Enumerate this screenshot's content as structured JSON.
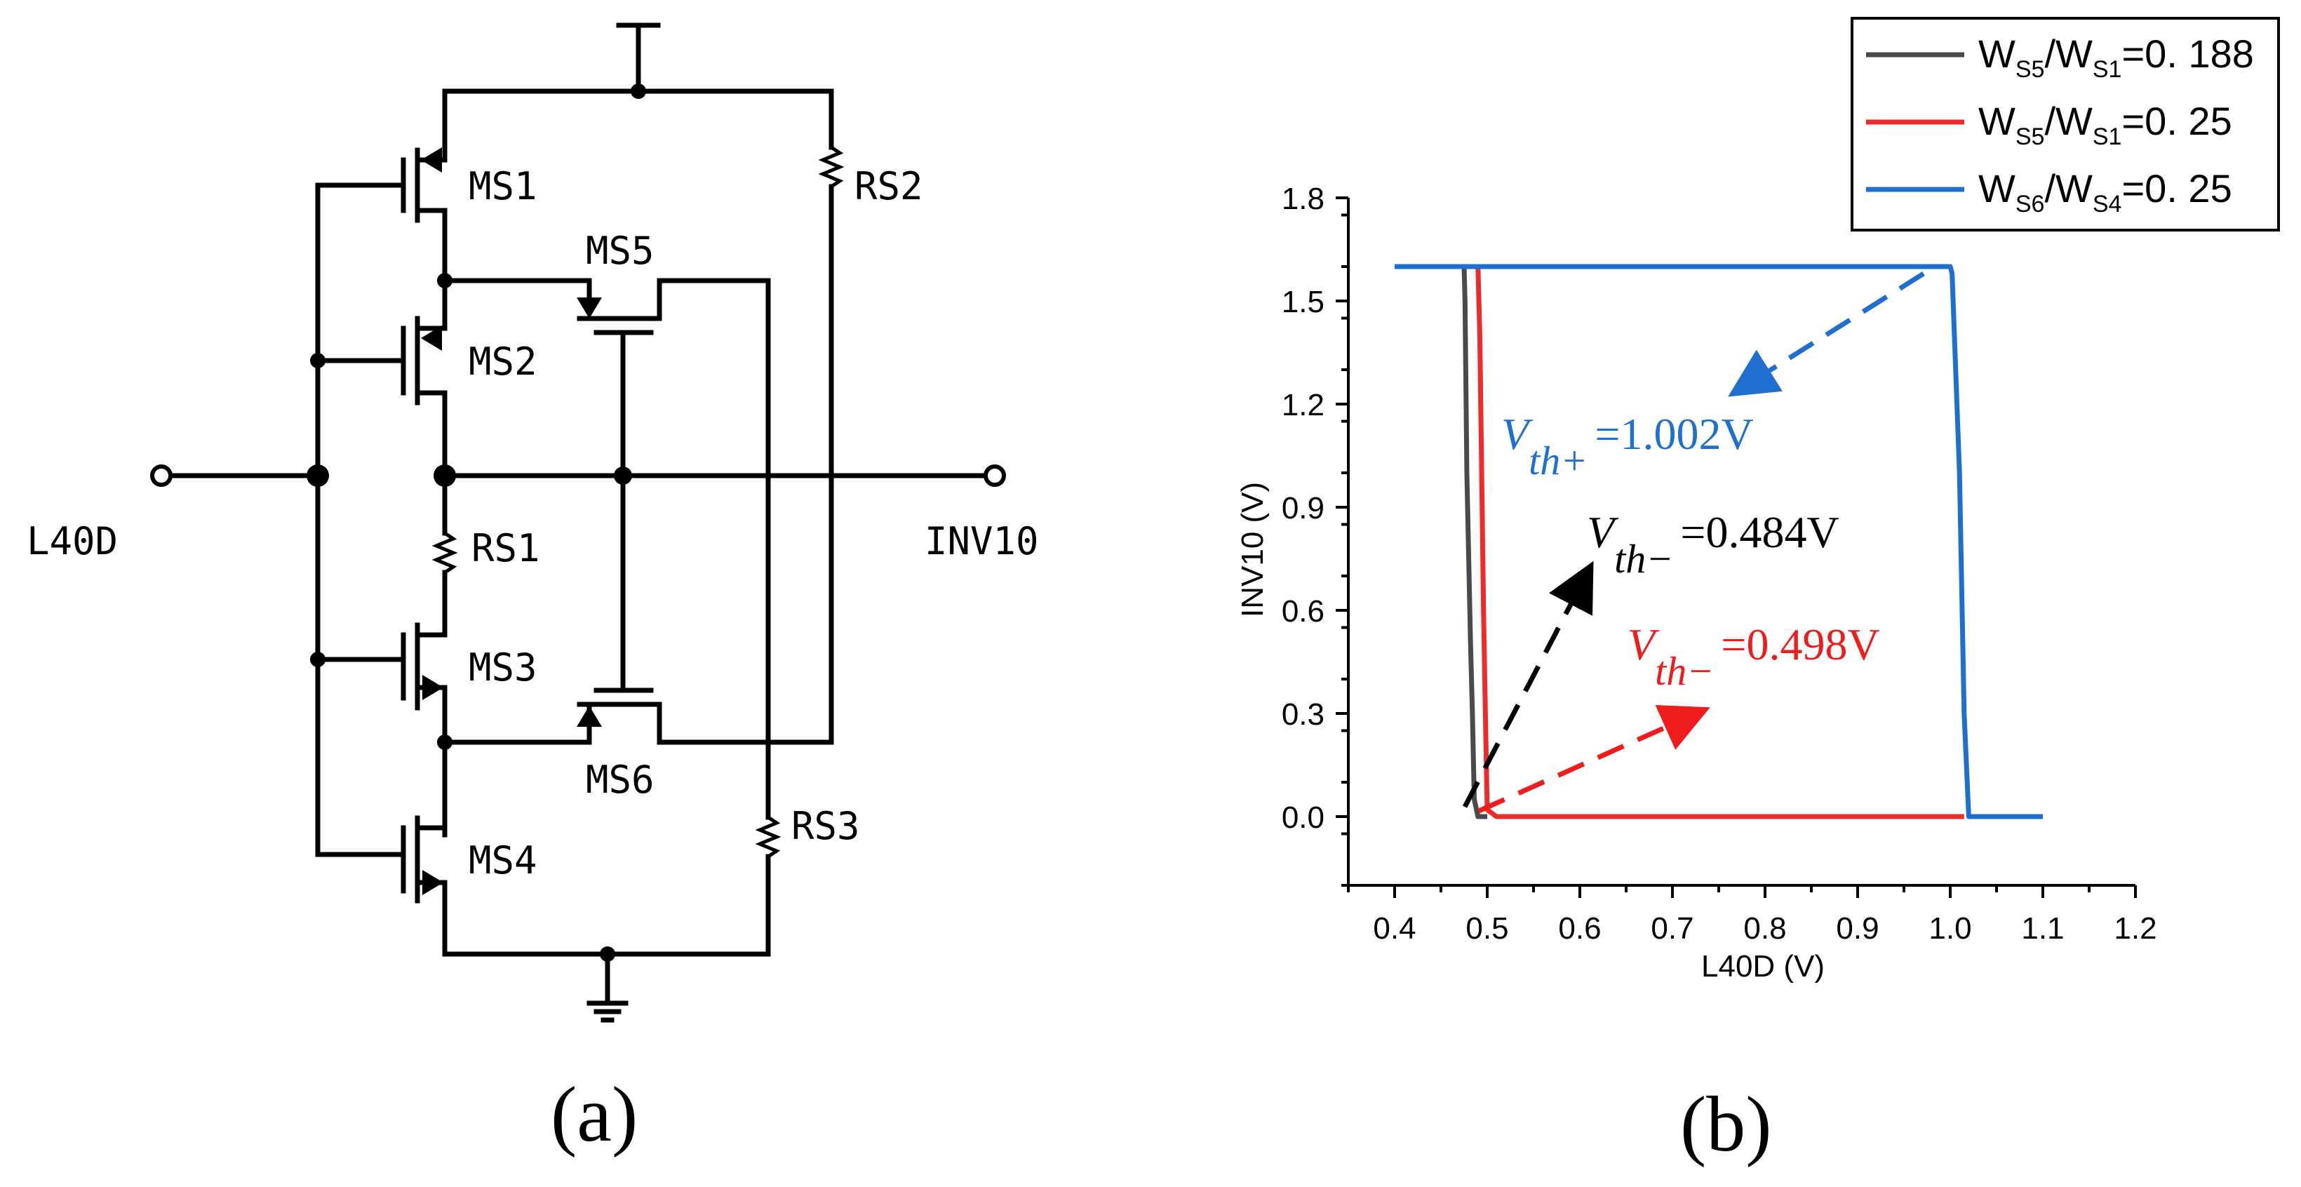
{
  "circuit": {
    "transistors": {
      "ms1": "MS1",
      "ms2": "MS2",
      "ms3": "MS3",
      "ms4": "MS4",
      "ms5": "MS5",
      "ms6": "MS6"
    },
    "resistors": {
      "rs1": "RS1",
      "rs2": "RS2",
      "rs3": "RS3"
    },
    "input_label": "L40D",
    "output_label": "INV10",
    "caption": "(a)"
  },
  "chart_caption": "(b)",
  "chart_data": {
    "type": "line",
    "title": "",
    "xlabel": "L40D (V)",
    "ylabel": "INV10 (V)",
    "xlim": [
      0.35,
      1.2
    ],
    "ylim": [
      -0.2,
      1.8
    ],
    "xticks": [
      0.4,
      0.5,
      0.6,
      0.7,
      0.8,
      0.9,
      1.0,
      1.1,
      1.2
    ],
    "xtick_labels": [
      "0.4",
      "0.5",
      "0.6",
      "0.7",
      "0.8",
      "0.9",
      "1.0",
      "1.1",
      "1.2"
    ],
    "yticks": [
      0.0,
      0.3,
      0.6,
      0.9,
      1.2,
      1.5,
      1.8
    ],
    "ytick_labels": [
      "0.0",
      "0.3",
      "0.6",
      "0.9",
      "1.2",
      "1.5",
      "1.8"
    ],
    "legend": {
      "position": "top-right",
      "entries": [
        {
          "w": "W",
          "a": "S5",
          "sep": "/W",
          "b": "S1",
          "value": "=0. 188",
          "color": "#4a4a4a"
        },
        {
          "w": "W",
          "a": "S5",
          "sep": "/W",
          "b": "S1",
          "value": "=0. 25",
          "color": "#ee2b2b"
        },
        {
          "w": "W",
          "a": "S6",
          "sep": "/W",
          "b": "S4",
          "value": "=0. 25",
          "color": "#1f6fd1"
        }
      ]
    },
    "series": [
      {
        "name": "WS5/WS1=0.188",
        "color": "#4a4a4a",
        "x": [
          0.475,
          0.476,
          0.478,
          0.482,
          0.484,
          0.486,
          0.49,
          0.5
        ],
        "y": [
          1.6,
          1.5,
          1.0,
          0.5,
          0.3,
          0.05,
          0.0,
          0.0
        ]
      },
      {
        "name": "WS5/WS1=0.25",
        "color": "#ee2b2b",
        "x": [
          0.49,
          0.492,
          0.494,
          0.496,
          0.498,
          0.5,
          0.51,
          1.0,
          1.015
        ],
        "y": [
          1.6,
          1.4,
          1.0,
          0.6,
          0.3,
          0.02,
          0.0,
          0.0,
          0.0
        ]
      },
      {
        "name": "WS6/WS4=0.25",
        "color": "#1f6fd1",
        "x": [
          0.4,
          0.95,
          1.0,
          1.002,
          1.01,
          1.015,
          1.02,
          1.1
        ],
        "y": [
          1.6,
          1.6,
          1.6,
          1.58,
          1.0,
          0.3,
          0.0,
          0.0
        ]
      }
    ],
    "annotations": [
      {
        "name": "vth-plus",
        "V": "V",
        "sub": "th+",
        "value": "=1.002V",
        "color": "#1f6fd1",
        "arrow_from": [
          1.0,
          1.6
        ],
        "arrow_to": [
          0.82,
          1.24
        ]
      },
      {
        "name": "vth-minus-black",
        "V": "V",
        "sub": "th−",
        "value": "=0.484V",
        "color": "#000000",
        "arrow_from": [
          0.484,
          0.02
        ],
        "arrow_to": [
          0.62,
          0.72
        ]
      },
      {
        "name": "vth-minus-red",
        "V": "V",
        "sub": "th−",
        "value": "=0.498V",
        "color": "#ee1c1c",
        "arrow_from": [
          0.502,
          0.0
        ],
        "arrow_to": [
          0.745,
          0.24
        ]
      }
    ]
  }
}
